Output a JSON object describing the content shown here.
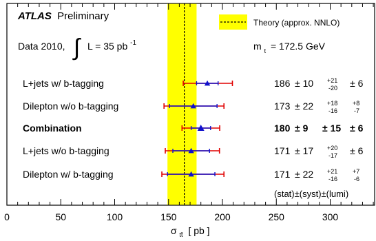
{
  "header": {
    "atlas": "ATLAS",
    "preliminary": "Preliminary",
    "data_label": "Data 2010,",
    "integral": "∫",
    "lumi_text": "L = 35 pb",
    "lumi_exp": "-1",
    "mass_text": "m",
    "mass_sub": "t",
    "mass_value": "= 172.5 GeV"
  },
  "legend": {
    "theory_label": "Theory (approx. NNLO)"
  },
  "uncertainty_footer": "(stat)±(syst)±(lumi)",
  "colors": {
    "theory_band": "#ffff00",
    "marker": "#1010cc",
    "syst_bar": "#e00000",
    "stat_bar": "#1010cc",
    "axis": "#000000"
  },
  "chart_data": {
    "type": "scatter",
    "title": "",
    "xlabel": "σ",
    "xlabel_sub": "tt̄",
    "xlabel_unit": "[ pb ]",
    "xlim": [
      0,
      340
    ],
    "xticks": [
      0,
      50,
      100,
      150,
      200,
      250,
      300
    ],
    "theory": {
      "central": 164.6,
      "low": 149,
      "high": 176
    },
    "measurements": [
      {
        "label": "L+jets w/ b-tagging",
        "bold": false,
        "value": 186,
        "stat_lo": 10,
        "stat_hi": 10,
        "syst_lo": 20,
        "syst_hi": 21,
        "lumi": 6,
        "text_val": "186",
        "text_stat": "± 10",
        "text_syst_hi": "+21",
        "text_syst_lo": "-20",
        "text_lumi": "± 6"
      },
      {
        "label": "Dilepton w/o b-tagging",
        "bold": false,
        "value": 173,
        "stat_lo": 22,
        "stat_hi": 22,
        "syst_lo": 16,
        "syst_hi": 18,
        "lumi": 8,
        "text_val": "173",
        "text_stat": "± 22",
        "text_syst_hi": "+18",
        "text_syst_lo": "-16",
        "text_lumi_hi": "+8",
        "text_lumi_lo": "-7"
      },
      {
        "label": "Combination",
        "bold": true,
        "value": 180,
        "stat_lo": 9,
        "stat_hi": 9,
        "syst_lo": 15,
        "syst_hi": 15,
        "lumi": 6,
        "text_val": "180",
        "text_stat": "± 9",
        "text_syst": "± 15",
        "text_lumi": "± 6"
      },
      {
        "label": "L+jets w/o b-tagging",
        "bold": false,
        "value": 171,
        "stat_lo": 17,
        "stat_hi": 17,
        "syst_lo": 17,
        "syst_hi": 20,
        "lumi": 6,
        "text_val": "171",
        "text_stat": "± 17",
        "text_syst_hi": "+20",
        "text_syst_lo": "-17",
        "text_lumi": "± 6"
      },
      {
        "label": "Dilepton w/ b-tagging",
        "bold": false,
        "value": 171,
        "stat_lo": 22,
        "stat_hi": 22,
        "syst_lo": 16,
        "syst_hi": 21,
        "lumi": 7,
        "text_val": "171",
        "text_stat": "± 22",
        "text_syst_hi": "+21",
        "text_syst_lo": "-16",
        "text_lumi_hi": "+7",
        "text_lumi_lo": "-6"
      }
    ]
  }
}
